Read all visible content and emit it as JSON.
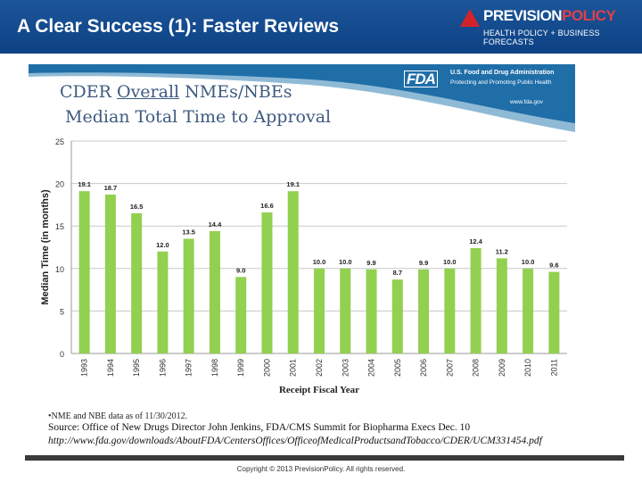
{
  "header": {
    "title": "A Clear Success (1): Faster Reviews",
    "logo_main": "PREVISION",
    "logo_accent": "POLICY",
    "logo_tagline": "HEALTH POLICY + BUSINESS FORECASTS"
  },
  "banner": {
    "fda_logo": "FDA",
    "agency": "U.S. Food and Drug Administration",
    "tagline": "Protecting and Promoting Public Health",
    "url": "www.fda.gov",
    "title_pre": "CDER ",
    "title_underline": "Overall",
    "title_post": " NMEs/NBEs",
    "subtitle": "Median Total Time to Approval"
  },
  "chart_data": {
    "type": "bar",
    "title": "CDER Overall NMEs/NBEs Median Total Time to Approval",
    "xlabel": "Receipt Fiscal Year",
    "ylabel": "Median Time (in months)",
    "ylim": [
      0,
      25
    ],
    "yticks": [
      "0",
      "5",
      "10",
      "15",
      "20",
      "25"
    ],
    "grid": true,
    "categories": [
      "1993",
      "1994",
      "1995",
      "1996",
      "1997",
      "1998",
      "1999",
      "2000",
      "2001",
      "2002",
      "2003",
      "2004",
      "2005",
      "2006",
      "2007",
      "2008",
      "2009",
      "2010",
      "2011"
    ],
    "values": [
      19.1,
      18.7,
      16.5,
      12.0,
      13.5,
      14.4,
      9.0,
      16.6,
      19.1,
      10.0,
      10.0,
      9.9,
      8.7,
      9.9,
      10.0,
      12.4,
      11.2,
      10.0,
      9.6
    ],
    "labels": [
      "19.1",
      "18.7",
      "16.5",
      "12.0",
      "13.5",
      "14.4",
      "9.0",
      "16.6",
      "19.1",
      "10.0",
      "10.0",
      "9.9",
      "8.7",
      "9.9",
      "10.0",
      "12.4",
      "11.2",
      "10.0",
      "9.6"
    ],
    "bar_color": "#92d050"
  },
  "footer": {
    "note": "•NME and NBE data as of 11/30/2012.",
    "source": "Source: Office of New Drugs Director John Jenkins, FDA/CMS Summit for Biopharma Execs Dec. 10",
    "url": "http://www.fda.gov/downloads/AboutFDA/CentersOffices/OfficeofMedicalProductsandTobacco/CDER/UCM331454.pdf",
    "copyright": "Copyright © 2013 PrevisionPolicy. All rights reserved."
  }
}
